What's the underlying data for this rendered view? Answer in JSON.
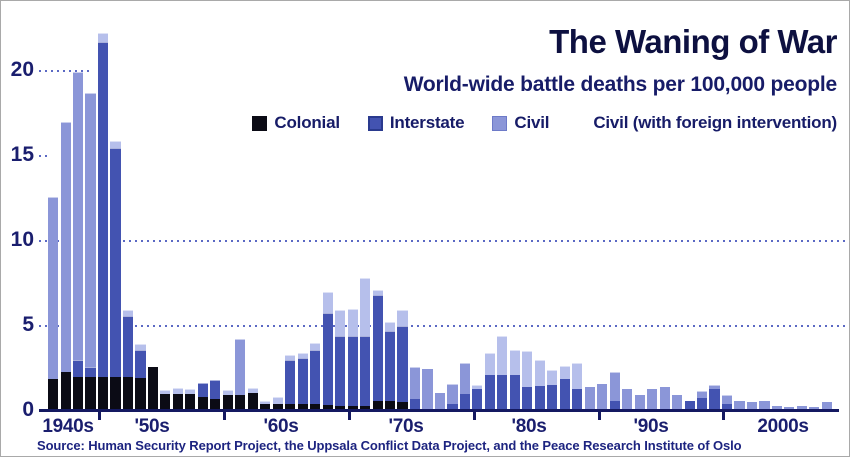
{
  "title": "The Waning of War",
  "subtitle": "World-wide battle deaths per 100,000 people",
  "source": "Source: Human Security Report Project, the Uppsala Conflict Data Project, and the Peace Research Institute of Oslo",
  "colors": {
    "colonial": "#0b0b15",
    "interstate": "#4353b1",
    "civil": "#8b96d8",
    "civil_fi": "#b6bfeb",
    "interstate_border": "#2a3a8e",
    "civil_border": "#6d7ac8",
    "grid_dots": "#5b69c4",
    "axis": "#141961"
  },
  "legend": [
    {
      "key": "colonial",
      "label": "Colonial",
      "swatch": true
    },
    {
      "key": "interstate",
      "label": "Interstate",
      "swatch": true
    },
    {
      "key": "civil",
      "label": "Civil",
      "swatch": true
    },
    {
      "key": "civil_fi",
      "label": "Civil (with foreign intervention)",
      "swatch": false
    }
  ],
  "chart_data": {
    "type": "bar",
    "stacked": true,
    "title": "The Waning of War",
    "subtitle": "World-wide battle deaths per 100,000 people",
    "ylabel": "battle deaths per 100,000 people",
    "ylim": [
      0,
      22.5
    ],
    "y_ticks": [
      0,
      5,
      10,
      15,
      20
    ],
    "x_labels": [
      "1940s",
      "'50s",
      "'60s",
      "'70s",
      "'80s",
      "'90s",
      "2000s"
    ],
    "series_order": [
      "colonial",
      "interstate",
      "civil",
      "civil_fi"
    ],
    "series_names": {
      "colonial": "Colonial",
      "interstate": "Interstate",
      "civil": "Civil",
      "civil_fi": "Civil (with foreign intervention)"
    },
    "bars": [
      {
        "year": 1946,
        "colonial": 1.75,
        "interstate": 0,
        "civil": 10.7,
        "civil_fi": 0
      },
      {
        "year": 1947,
        "colonial": 2.2,
        "interstate": 0,
        "civil": 14.7,
        "civil_fi": 0
      },
      {
        "year": 1948,
        "colonial": 1.9,
        "interstate": 1.0,
        "civil": 16.9,
        "civil_fi": 0
      },
      {
        "year": 1949,
        "colonial": 1.9,
        "interstate": 0.6,
        "civil": 16.1,
        "civil_fi": 0
      },
      {
        "year": 1950,
        "colonial": 1.9,
        "interstate": 19.7,
        "civil": 0,
        "civil_fi": 0.5
      },
      {
        "year": 1951,
        "colonial": 1.9,
        "interstate": 13.45,
        "civil": 0,
        "civil_fi": 0.4
      },
      {
        "year": 1952,
        "colonial": 1.9,
        "interstate": 3.6,
        "civil": 0,
        "civil_fi": 0.3
      },
      {
        "year": 1953,
        "colonial": 1.8,
        "interstate": 1.7,
        "civil": 0,
        "civil_fi": 0.3
      },
      {
        "year": 1954,
        "colonial": 2.45,
        "interstate": 0,
        "civil": 0,
        "civil_fi": 0
      },
      {
        "year": 1955,
        "colonial": 0.9,
        "interstate": 0,
        "civil": 0,
        "civil_fi": 0.2
      },
      {
        "year": 1956,
        "colonial": 0.9,
        "interstate": 0,
        "civil": 0,
        "civil_fi": 0.35
      },
      {
        "year": 1957,
        "colonial": 0.9,
        "interstate": 0,
        "civil": 0,
        "civil_fi": 0.25
      },
      {
        "year": 1958,
        "colonial": 0.7,
        "interstate": 0.85,
        "civil": 0,
        "civil_fi": 0
      },
      {
        "year": 1959,
        "colonial": 0.6,
        "interstate": 1.1,
        "civil": 0,
        "civil_fi": 0
      },
      {
        "year": 1960,
        "colonial": 0.8,
        "interstate": 0,
        "civil": 0,
        "civil_fi": 0.3
      },
      {
        "year": 1961,
        "colonial": 0.8,
        "interstate": 0,
        "civil": 3.3,
        "civil_fi": 0
      },
      {
        "year": 1962,
        "colonial": 0.95,
        "interstate": 0,
        "civil": 0,
        "civil_fi": 0.3
      },
      {
        "year": 1963,
        "colonial": 0.3,
        "interstate": 0,
        "civil": 0,
        "civil_fi": 0.15
      },
      {
        "year": 1964,
        "colonial": 0.3,
        "interstate": 0,
        "civil": 0,
        "civil_fi": 0.4
      },
      {
        "year": 1965,
        "colonial": 0.3,
        "interstate": 2.6,
        "civil": 0,
        "civil_fi": 0.3
      },
      {
        "year": 1966,
        "colonial": 0.3,
        "interstate": 2.7,
        "civil": 0,
        "civil_fi": 0.3
      },
      {
        "year": 1967,
        "colonial": 0.3,
        "interstate": 3.2,
        "civil": 0,
        "civil_fi": 0.4
      },
      {
        "year": 1968,
        "colonial": 0.25,
        "interstate": 5.4,
        "civil": 0,
        "civil_fi": 1.25
      },
      {
        "year": 1969,
        "colonial": 0.2,
        "interstate": 4.1,
        "civil": 0,
        "civil_fi": 1.55
      },
      {
        "year": 1970,
        "colonial": 0.2,
        "interstate": 4.1,
        "civil": 0,
        "civil_fi": 1.6
      },
      {
        "year": 1971,
        "colonial": 0.2,
        "interstate": 4.1,
        "civil": 0,
        "civil_fi": 3.4
      },
      {
        "year": 1972,
        "colonial": 0.5,
        "interstate": 6.2,
        "civil": 0,
        "civil_fi": 0.3
      },
      {
        "year": 1973,
        "colonial": 0.5,
        "interstate": 4.1,
        "civil": 0,
        "civil_fi": 0.5
      },
      {
        "year": 1974,
        "colonial": 0.4,
        "interstate": 4.5,
        "civil": 0,
        "civil_fi": 0.9
      },
      {
        "year": 1975,
        "colonial": 0,
        "interstate": 0.6,
        "civil": 1.9,
        "civil_fi": 0
      },
      {
        "year": 1976,
        "colonial": 0,
        "interstate": 0,
        "civil": 2.35,
        "civil_fi": 0
      },
      {
        "year": 1977,
        "colonial": 0,
        "interstate": 0,
        "civil": 0.95,
        "civil_fi": 0
      },
      {
        "year": 1978,
        "colonial": 0,
        "interstate": 0.3,
        "civil": 1.2,
        "civil_fi": 0
      },
      {
        "year": 1979,
        "colonial": 0,
        "interstate": 0.9,
        "civil": 1.8,
        "civil_fi": 0
      },
      {
        "year": 1980,
        "colonial": 0,
        "interstate": 1.2,
        "civil": 0,
        "civil_fi": 0.2
      },
      {
        "year": 1981,
        "colonial": 0,
        "interstate": 2.0,
        "civil": 0,
        "civil_fi": 1.3
      },
      {
        "year": 1982,
        "colonial": 0,
        "interstate": 2.0,
        "civil": 0,
        "civil_fi": 2.3
      },
      {
        "year": 1983,
        "colonial": 0,
        "interstate": 2.0,
        "civil": 0,
        "civil_fi": 1.5
      },
      {
        "year": 1984,
        "colonial": 0,
        "interstate": 1.3,
        "civil": 0,
        "civil_fi": 2.1
      },
      {
        "year": 1985,
        "colonial": 0,
        "interstate": 1.35,
        "civil": 0,
        "civil_fi": 1.55
      },
      {
        "year": 1986,
        "colonial": 0,
        "interstate": 1.4,
        "civil": 0,
        "civil_fi": 0.9
      },
      {
        "year": 1987,
        "colonial": 0,
        "interstate": 1.75,
        "civil": 0,
        "civil_fi": 0.75
      },
      {
        "year": 1988,
        "colonial": 0,
        "interstate": 1.2,
        "civil": 0,
        "civil_fi": 1.5
      },
      {
        "year": 1989,
        "colonial": 0,
        "interstate": 0,
        "civil": 1.3,
        "civil_fi": 0
      },
      {
        "year": 1990,
        "colonial": 0,
        "interstate": 0,
        "civil": 1.5,
        "civil_fi": 0
      },
      {
        "year": 1991,
        "colonial": 0,
        "interstate": 0.5,
        "civil": 1.7,
        "civil_fi": 0
      },
      {
        "year": 1992,
        "colonial": 0,
        "interstate": 0,
        "civil": 1.2,
        "civil_fi": 0
      },
      {
        "year": 1993,
        "colonial": 0,
        "interstate": 0,
        "civil": 0.8,
        "civil_fi": 0
      },
      {
        "year": 1994,
        "colonial": 0,
        "interstate": 0,
        "civil": 1.2,
        "civil_fi": 0
      },
      {
        "year": 1995,
        "colonial": 0,
        "interstate": 0,
        "civil": 1.3,
        "civil_fi": 0
      },
      {
        "year": 1996,
        "colonial": 0,
        "interstate": 0,
        "civil": 0.8,
        "civil_fi": 0
      },
      {
        "year": 1997,
        "colonial": 0,
        "interstate": 0.5,
        "civil": 0,
        "civil_fi": 0
      },
      {
        "year": 1998,
        "colonial": 0,
        "interstate": 0.65,
        "civil": 0.4,
        "civil_fi": 0
      },
      {
        "year": 1999,
        "colonial": 0,
        "interstate": 1.2,
        "civil": 0.2,
        "civil_fi": 0
      },
      {
        "year": 2000,
        "colonial": 0,
        "interstate": 0.3,
        "civil": 0.55,
        "civil_fi": 0
      },
      {
        "year": 2001,
        "colonial": 0,
        "interstate": 0,
        "civil": 0.5,
        "civil_fi": 0
      },
      {
        "year": 2002,
        "colonial": 0,
        "interstate": 0,
        "civil": 0.4,
        "civil_fi": 0
      },
      {
        "year": 2003,
        "colonial": 0,
        "interstate": 0,
        "civil": 0.5,
        "civil_fi": 0
      },
      {
        "year": 2004,
        "colonial": 0,
        "interstate": 0,
        "civil": 0.2,
        "civil_fi": 0
      },
      {
        "year": 2005,
        "colonial": 0,
        "interstate": 0,
        "civil": 0.15,
        "civil_fi": 0
      },
      {
        "year": 2006,
        "colonial": 0,
        "interstate": 0,
        "civil": 0.2,
        "civil_fi": 0
      },
      {
        "year": 2007,
        "colonial": 0,
        "interstate": 0,
        "civil": 0.15,
        "civil_fi": 0
      },
      {
        "year": 2008,
        "colonial": 0,
        "interstate": 0,
        "civil": 0.4,
        "civil_fi": 0
      }
    ]
  }
}
